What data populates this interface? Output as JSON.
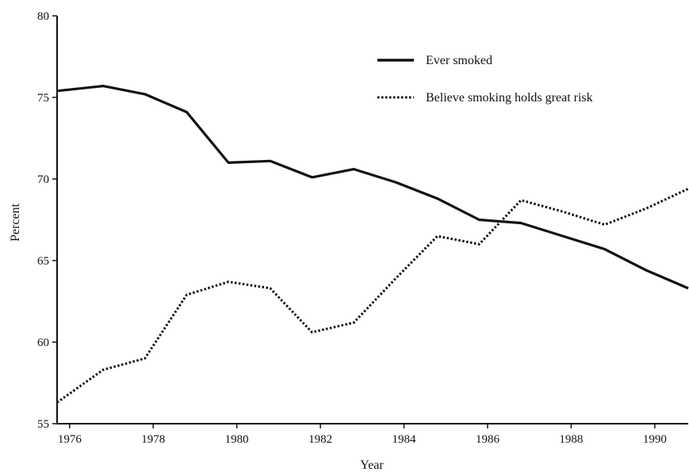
{
  "chart_data": {
    "type": "line",
    "title": "",
    "xlabel": "Year",
    "ylabel": "Percent",
    "xlim": [
      1975.7,
      1990.8
    ],
    "ylim": [
      55,
      80
    ],
    "x_ticks": [
      1976,
      1978,
      1980,
      1982,
      1984,
      1986,
      1988,
      1990
    ],
    "y_ticks": [
      55,
      60,
      65,
      70,
      75,
      80
    ],
    "grid": false,
    "legend_position": "top-right",
    "series": [
      {
        "name": "Ever smoked",
        "style": "solid",
        "color": "#111111",
        "x": [
          1975.7,
          1976.8,
          1977.8,
          1978.8,
          1979.8,
          1980.8,
          1981.8,
          1982.8,
          1983.8,
          1984.8,
          1985.8,
          1986.8,
          1987.8,
          1988.8,
          1989.8,
          1990.8
        ],
        "values": [
          75.4,
          75.7,
          75.2,
          74.1,
          71.0,
          71.1,
          70.1,
          70.6,
          69.8,
          68.8,
          67.5,
          67.3,
          66.5,
          65.7,
          64.4,
          63.3
        ]
      },
      {
        "name": "Believe smoking holds great risk",
        "style": "dotted",
        "color": "#111111",
        "x": [
          1975.7,
          1976.8,
          1977.8,
          1978.8,
          1979.8,
          1980.8,
          1981.8,
          1982.8,
          1983.8,
          1984.8,
          1985.8,
          1986.8,
          1987.8,
          1988.8,
          1989.8,
          1990.8
        ],
        "values": [
          56.3,
          58.3,
          59.0,
          62.9,
          63.7,
          63.3,
          60.6,
          61.2,
          63.9,
          66.5,
          66.0,
          68.7,
          68.0,
          67.2,
          68.2,
          69.4
        ]
      }
    ]
  }
}
